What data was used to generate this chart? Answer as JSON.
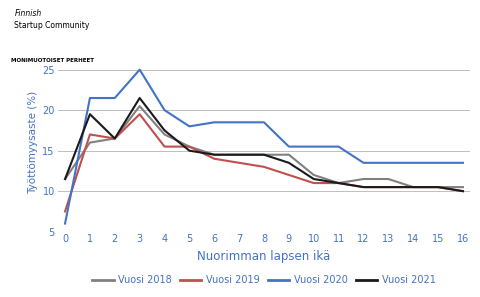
{
  "x": [
    0,
    1,
    2,
    3,
    4,
    5,
    6,
    7,
    8,
    9,
    10,
    11,
    12,
    13,
    14,
    15,
    16
  ],
  "vuosi_2018": [
    11.5,
    16.0,
    16.5,
    20.5,
    17.0,
    15.5,
    14.5,
    14.5,
    14.5,
    14.5,
    12.0,
    11.0,
    11.5,
    11.5,
    10.5,
    10.5,
    10.5
  ],
  "vuosi_2019": [
    7.5,
    17.0,
    16.5,
    19.5,
    15.5,
    15.5,
    14.0,
    13.5,
    13.0,
    12.0,
    11.0,
    11.0,
    10.5,
    10.5,
    10.5,
    10.5,
    10.0
  ],
  "vuosi_2020": [
    6.0,
    21.5,
    21.5,
    25.0,
    20.0,
    18.0,
    18.5,
    18.5,
    18.5,
    15.5,
    15.5,
    15.5,
    13.5,
    13.5,
    13.5,
    13.5,
    13.5
  ],
  "vuosi_2021": [
    11.5,
    19.5,
    16.5,
    21.5,
    17.5,
    15.0,
    14.5,
    14.5,
    14.5,
    13.5,
    11.5,
    11.0,
    10.5,
    10.5,
    10.5,
    10.5,
    10.0
  ],
  "colors": {
    "vuosi_2018": "#808080",
    "vuosi_2019": "#c0504d",
    "vuosi_2020": "#4472c4",
    "vuosi_2021": "#1a1a1a"
  },
  "labels": {
    "vuosi_2018": "Vuosi 2018",
    "vuosi_2019": "Vuosi 2019",
    "vuosi_2020": "Vuosi 2020",
    "vuosi_2021": "Vuosi 2021"
  },
  "ylabel": "Työttömyysaste (%)",
  "xlabel": "Nuorimman lapsen ikä",
  "ylim": [
    5,
    27
  ],
  "yticks": [
    5,
    10,
    15,
    20,
    25
  ],
  "xlim": [
    -0.3,
    16.3
  ],
  "xticks": [
    0,
    1,
    2,
    3,
    4,
    5,
    6,
    7,
    8,
    9,
    10,
    11,
    12,
    13,
    14,
    15,
    16
  ],
  "axis_color": "#4472c4",
  "grid_color": "#bebebe",
  "line_width": 1.5,
  "header_text1": "Finnish",
  "header_text2": "Startup Community",
  "header_badge": "MONIMUOTOISET PERHEET",
  "fig_width": 4.8,
  "fig_height": 2.97,
  "dpi": 100
}
